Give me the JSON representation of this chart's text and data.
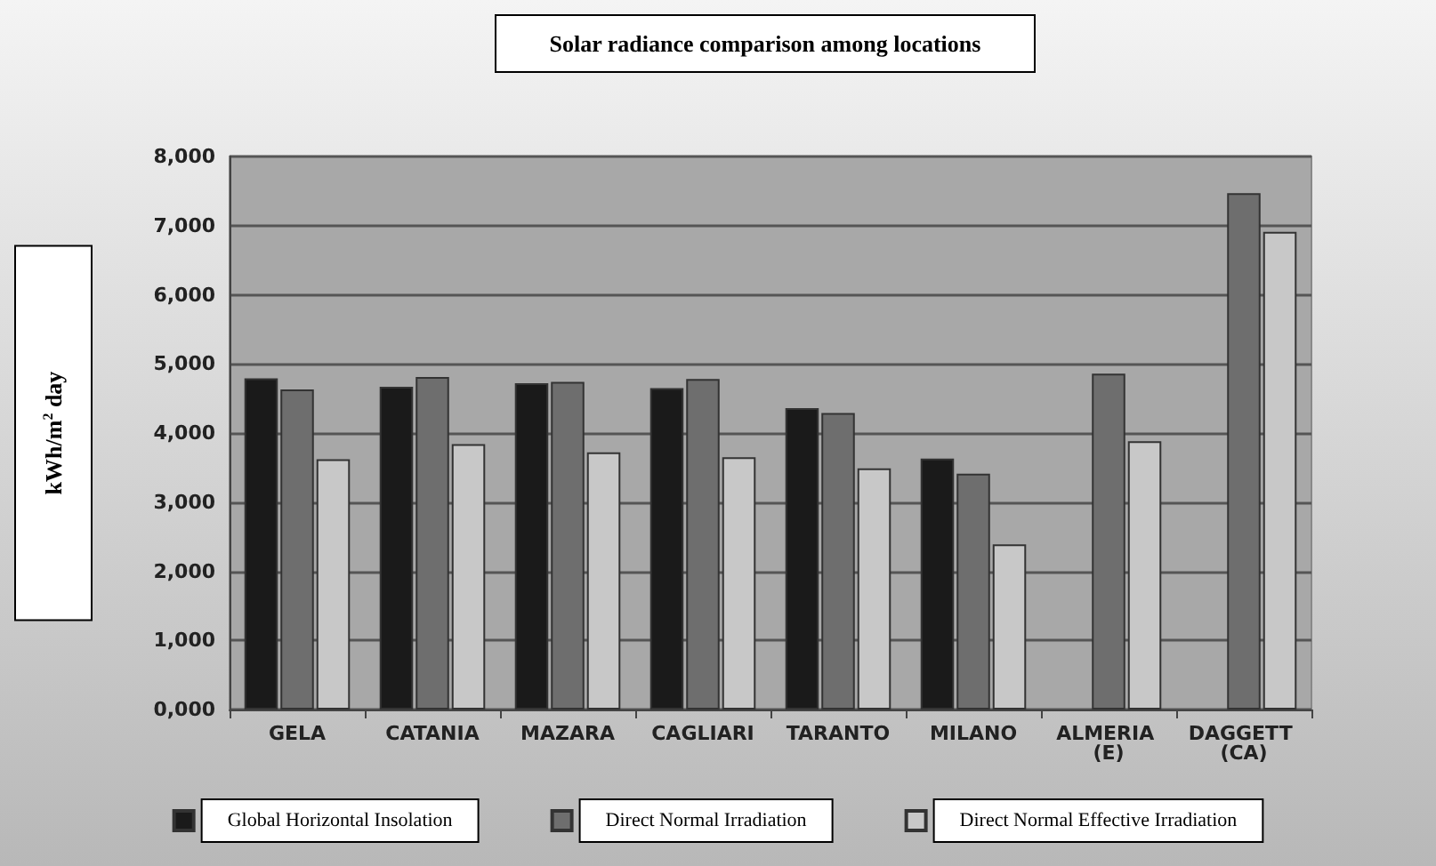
{
  "chart_data": {
    "type": "bar",
    "title": "Solar radiance comparison among locations",
    "ylabel": "kWh/m$^{2}$ day",
    "categories": [
      "GELA",
      "CATANIA",
      "MAZARA",
      "CAGLIARI",
      "TARANTO",
      "MILANO",
      "ALMERIA (E)",
      "DAGGETT (CA)"
    ],
    "series": [
      {
        "name": "Global Horizontal Insolation",
        "color": "#1a1a1a",
        "values": [
          4790,
          4670,
          4720,
          4650,
          4360,
          3630,
          null,
          null
        ]
      },
      {
        "name": "Direct Normal Irradiation",
        "color": "#6e6e6e",
        "values": [
          4630,
          4810,
          4740,
          4780,
          4290,
          3410,
          4860,
          7470
        ]
      },
      {
        "name": "Direct Normal Effective Irradiation",
        "color": "#c8c8c8",
        "values": [
          3620,
          3840,
          3720,
          3650,
          3490,
          2390,
          3880,
          6910
        ]
      }
    ],
    "ylim": [
      0,
      8000
    ],
    "yticks": [
      {
        "value": 0,
        "label": "0,000"
      },
      {
        "value": 1000,
        "label": "1,000"
      },
      {
        "value": 2000,
        "label": "2,000"
      },
      {
        "value": 3000,
        "label": "3,000"
      },
      {
        "value": 4000,
        "label": "4,000"
      },
      {
        "value": 5000,
        "label": "5,000"
      },
      {
        "value": 6000,
        "label": "6,000"
      },
      {
        "value": 7000,
        "label": "7,000"
      },
      {
        "value": 8000,
        "label": "8,000"
      }
    ],
    "grid": "y",
    "legend": "bottom"
  }
}
